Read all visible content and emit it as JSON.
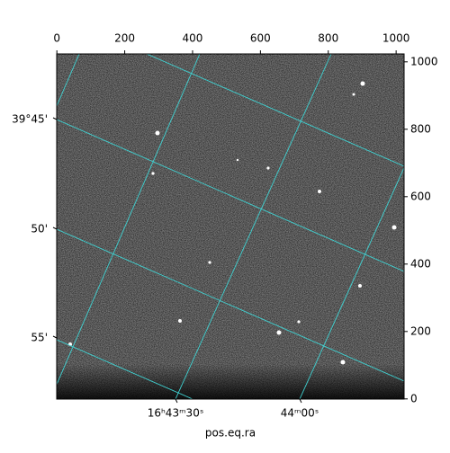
{
  "chart_data": {
    "type": "image",
    "xlabel": "pos.eq.ra",
    "xlim": [
      -0.5,
      1023.5
    ],
    "xticks": [
      0,
      200,
      400,
      600,
      800,
      1000
    ],
    "ylim": [
      -0.5,
      1023.5
    ],
    "yticks": [
      0,
      200,
      400,
      600,
      800,
      1000
    ],
    "world_xticks": [
      "16ʰ43ᵐ30ˢ",
      "44ᵐ00ˢ"
    ],
    "world_yticks": [
      "39°45'",
      "50'",
      "55'"
    ],
    "grid": true,
    "grid_color": "#3fd3d3"
  }
}
